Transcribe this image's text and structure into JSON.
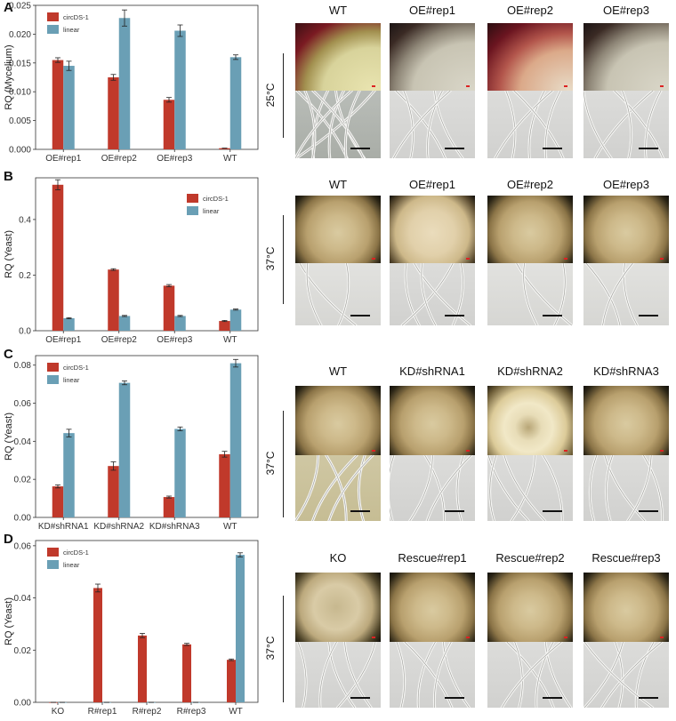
{
  "panels": [
    {
      "letter": "A",
      "temperature": "25°C",
      "column_labels": [
        "WT",
        "OE#rep1",
        "OE#rep2",
        "OE#rep3"
      ],
      "colony_style": [
        "mycelium-wt",
        "mycelium",
        "mycelium-red",
        "mycelium"
      ],
      "micro_style": [
        "micro-dense",
        "micro",
        "micro",
        "micro"
      ]
    },
    {
      "letter": "B",
      "temperature": "37°C",
      "column_labels": [
        "WT",
        "OE#rep1",
        "OE#rep2",
        "OE#rep3"
      ],
      "colony_style": [
        "yeast",
        "yeast-flat",
        "yeast",
        "yeast"
      ],
      "micro_style": [
        "micro-sparse",
        "micro",
        "micro-sparse",
        "micro-sparse"
      ]
    },
    {
      "letter": "C",
      "temperature": "37°C",
      "column_labels": [
        "WT",
        "KD#shRNA1",
        "KD#shRNA2",
        "KD#shRNA3"
      ],
      "colony_style": [
        "yeast",
        "yeast",
        "yeast-smooth",
        "yeast"
      ],
      "micro_style": [
        "micro-yellow",
        "micro",
        "micro",
        "micro"
      ]
    },
    {
      "letter": "D",
      "temperature": "37°C",
      "column_labels": [
        "KO",
        "Rescue#rep1",
        "Rescue#rep2",
        "Rescue#rep3"
      ],
      "colony_style": [
        "yeast-bumpy",
        "yeast",
        "yeast",
        "yeast"
      ],
      "micro_style": [
        "micro",
        "micro",
        "micro",
        "micro"
      ]
    }
  ],
  "colors": {
    "circ": "#c0392b",
    "linear": "#6a9fb5",
    "axis": "#333333"
  },
  "chart_data": [
    {
      "type": "bar",
      "panel": "A",
      "ylabel": "RQ (Mycelium)",
      "categories": [
        "OE#rep1",
        "OE#rep2",
        "OE#rep3",
        "WT"
      ],
      "ylim": [
        0,
        0.025
      ],
      "yticks": [
        0.0,
        0.005,
        0.01,
        0.015,
        0.02,
        0.025
      ],
      "ytick_labels": [
        "0.000",
        "0.005",
        "0.010",
        "0.015",
        "0.020",
        "0.025"
      ],
      "legend_position": "top-left",
      "series": [
        {
          "name": "circDS-1",
          "values": [
            0.0155,
            0.0125,
            0.0086,
            0.0002
          ],
          "errors": [
            0.0004,
            0.0005,
            0.0004,
            0.0
          ]
        },
        {
          "name": "linear",
          "values": [
            0.0145,
            0.0228,
            0.0206,
            0.016
          ],
          "errors": [
            0.0008,
            0.0014,
            0.001,
            0.0004
          ]
        }
      ]
    },
    {
      "type": "bar",
      "panel": "B",
      "ylabel": "RQ (Yeast)",
      "categories": [
        "OE#rep1",
        "OE#rep2",
        "OE#rep3",
        "WT"
      ],
      "ylim": [
        0,
        0.55
      ],
      "yticks": [
        0.0,
        0.2,
        0.4
      ],
      "ytick_labels": [
        "0.0",
        "0.2",
        "0.4"
      ],
      "legend_position": "top-right",
      "series": [
        {
          "name": "circDS-1",
          "values": [
            0.525,
            0.22,
            0.162,
            0.035
          ],
          "errors": [
            0.018,
            0.003,
            0.004,
            0.002
          ]
        },
        {
          "name": "linear",
          "values": [
            0.045,
            0.053,
            0.053,
            0.076
          ],
          "errors": [
            0.002,
            0.002,
            0.002,
            0.002
          ]
        }
      ]
    },
    {
      "type": "bar",
      "panel": "C",
      "ylabel": "RQ (Yeast)",
      "categories": [
        "KD#shRNA1",
        "KD#shRNA2",
        "KD#shRNA3",
        "WT"
      ],
      "ylim": [
        0,
        0.085
      ],
      "yticks": [
        0.0,
        0.02,
        0.04,
        0.06,
        0.08
      ],
      "ytick_labels": [
        "0.00",
        "0.02",
        "0.04",
        "0.06",
        "0.08"
      ],
      "legend_position": "top-left",
      "series": [
        {
          "name": "circDS-1",
          "values": [
            0.0163,
            0.027,
            0.0107,
            0.0332
          ],
          "errors": [
            0.0008,
            0.0022,
            0.0005,
            0.0015
          ]
        },
        {
          "name": "linear",
          "values": [
            0.0443,
            0.0707,
            0.0465,
            0.081
          ],
          "errors": [
            0.002,
            0.001,
            0.001,
            0.002
          ]
        }
      ]
    },
    {
      "type": "bar",
      "panel": "D",
      "ylabel": "RQ (Yeast)",
      "categories": [
        "KO",
        "R#rep1",
        "R#rep2",
        "R#rep3",
        "WT"
      ],
      "ylim": [
        0,
        0.062
      ],
      "yticks": [
        0.0,
        0.02,
        0.04,
        0.06
      ],
      "ytick_labels": [
        "0.00",
        "0.02",
        "0.04",
        "0.06"
      ],
      "legend_position": "top-left",
      "series": [
        {
          "name": "circDS-1",
          "values": [
            0.0,
            0.0438,
            0.0256,
            0.0222,
            0.0163
          ],
          "errors": [
            0.0,
            0.0015,
            0.0008,
            0.0004,
            0.0003
          ]
        },
        {
          "name": "linear",
          "values": [
            0.0,
            0.0,
            0.0,
            0.0,
            0.0565
          ],
          "errors": [
            0.0,
            0.0,
            0.0,
            0.0,
            0.0008
          ]
        }
      ]
    }
  ]
}
